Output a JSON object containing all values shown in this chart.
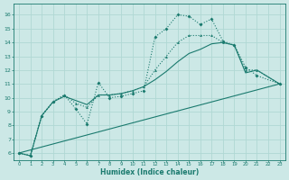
{
  "xlabel": "Humidex (Indice chaleur)",
  "xlim": [
    -0.5,
    23.5
  ],
  "ylim": [
    5.5,
    16.8
  ],
  "yticks": [
    6,
    7,
    8,
    9,
    10,
    11,
    12,
    13,
    14,
    15,
    16
  ],
  "xticks": [
    0,
    1,
    2,
    3,
    4,
    5,
    6,
    7,
    8,
    9,
    10,
    11,
    12,
    13,
    14,
    15,
    16,
    17,
    18,
    19,
    20,
    21,
    22,
    23
  ],
  "bg_color": "#cce8e6",
  "line_color": "#1a7a6e",
  "grid_color": "#b0d8d4",
  "curve1_x": [
    0,
    1,
    2,
    3,
    4,
    5,
    6,
    7,
    8,
    9,
    10,
    11,
    12,
    13,
    14,
    15,
    16,
    17,
    18,
    19,
    20,
    21,
    23
  ],
  "curve1_y": [
    6.0,
    5.8,
    8.7,
    9.7,
    10.2,
    9.2,
    8.1,
    11.1,
    10.0,
    10.1,
    10.3,
    10.5,
    14.4,
    15.0,
    16.0,
    15.9,
    15.3,
    15.7,
    14.1,
    13.8,
    12.2,
    11.6,
    11.0
  ],
  "curve2_x": [
    0,
    1,
    2,
    3,
    4,
    5,
    6,
    7,
    8,
    9,
    10,
    11,
    12,
    13,
    14,
    15,
    16,
    17,
    18,
    19,
    20,
    21,
    23
  ],
  "curve2_y": [
    6.0,
    5.8,
    8.7,
    9.7,
    10.2,
    9.6,
    9.3,
    10.2,
    10.2,
    10.3,
    10.5,
    10.8,
    12.0,
    13.0,
    14.0,
    14.5,
    14.5,
    14.5,
    14.0,
    13.8,
    12.0,
    12.0,
    11.0
  ],
  "curve3_x": [
    0,
    23
  ],
  "curve3_y": [
    6.0,
    11.0
  ],
  "curve4_x": [
    0,
    1,
    2,
    3,
    4,
    5,
    6,
    7,
    8,
    9,
    10,
    11,
    12,
    13,
    14,
    15,
    16,
    17,
    18,
    19,
    20,
    21,
    23
  ],
  "curve4_y": [
    6.0,
    5.8,
    8.7,
    9.7,
    10.1,
    9.8,
    9.5,
    10.2,
    10.2,
    10.3,
    10.5,
    10.8,
    11.3,
    11.9,
    12.6,
    13.2,
    13.5,
    13.9,
    14.0,
    13.8,
    11.8,
    12.0,
    11.0
  ]
}
